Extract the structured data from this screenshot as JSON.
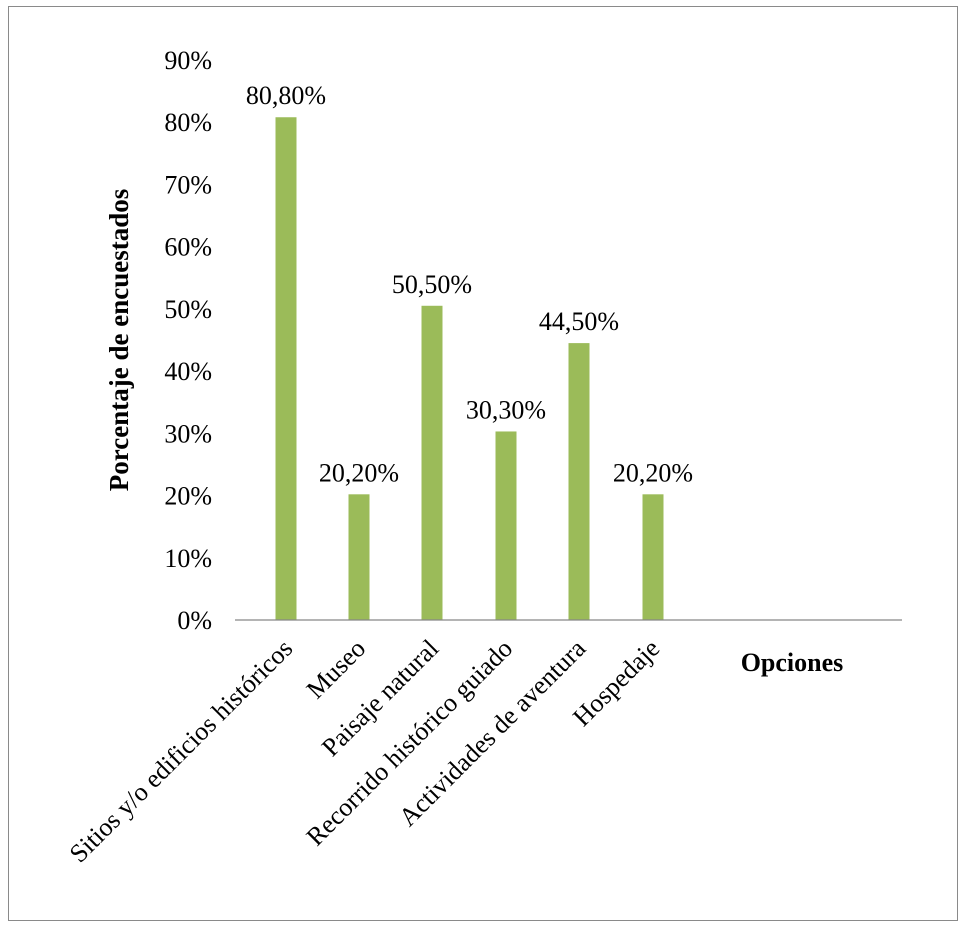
{
  "chart_data": {
    "type": "bar",
    "categories": [
      "Sitios y/o edificios históricos",
      "Museo",
      "Paisaje natural",
      "Recorrido histórico guiado",
      "Actividades de aventura",
      "Hospedaje"
    ],
    "values": [
      80.8,
      20.2,
      50.5,
      30.3,
      44.5,
      20.2
    ],
    "data_labels": [
      "80,80%",
      "20,20%",
      "50,50%",
      "30,30%",
      "44,50%",
      "20,20%"
    ],
    "y_ticks": [
      "0%",
      "10%",
      "20%",
      "30%",
      "40%",
      "50%",
      "60%",
      "70%",
      "80%",
      "90%"
    ],
    "title": "",
    "xlabel": "Opciones",
    "ylabel": "Porcentaje de encuestados",
    "ylim": [
      0,
      90
    ],
    "grid": false,
    "legend": "none",
    "bar_color": "#9bbb59",
    "axis_color": "#868686"
  }
}
